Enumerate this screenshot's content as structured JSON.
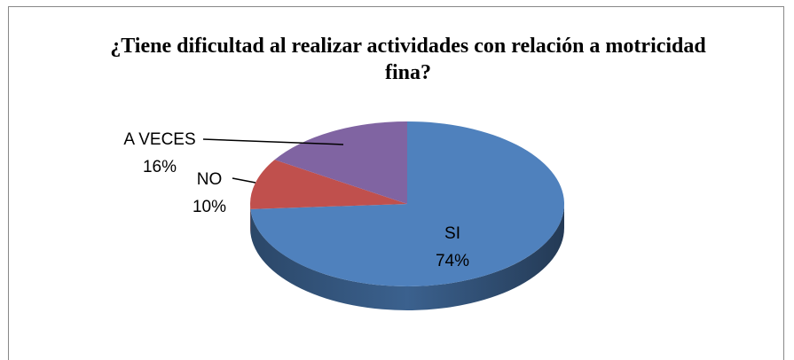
{
  "chart_data": {
    "type": "pie3d",
    "title": "¿Tiene dificultad al realizar actividades con relación a motricidad fina?",
    "categories": [
      "SI",
      "NO",
      "A VECES"
    ],
    "values": [
      74,
      10,
      16
    ],
    "value_labels": [
      "74%",
      "10%",
      "16%"
    ],
    "colors": [
      "#4f81bd",
      "#c0504d",
      "#8064a2"
    ]
  }
}
